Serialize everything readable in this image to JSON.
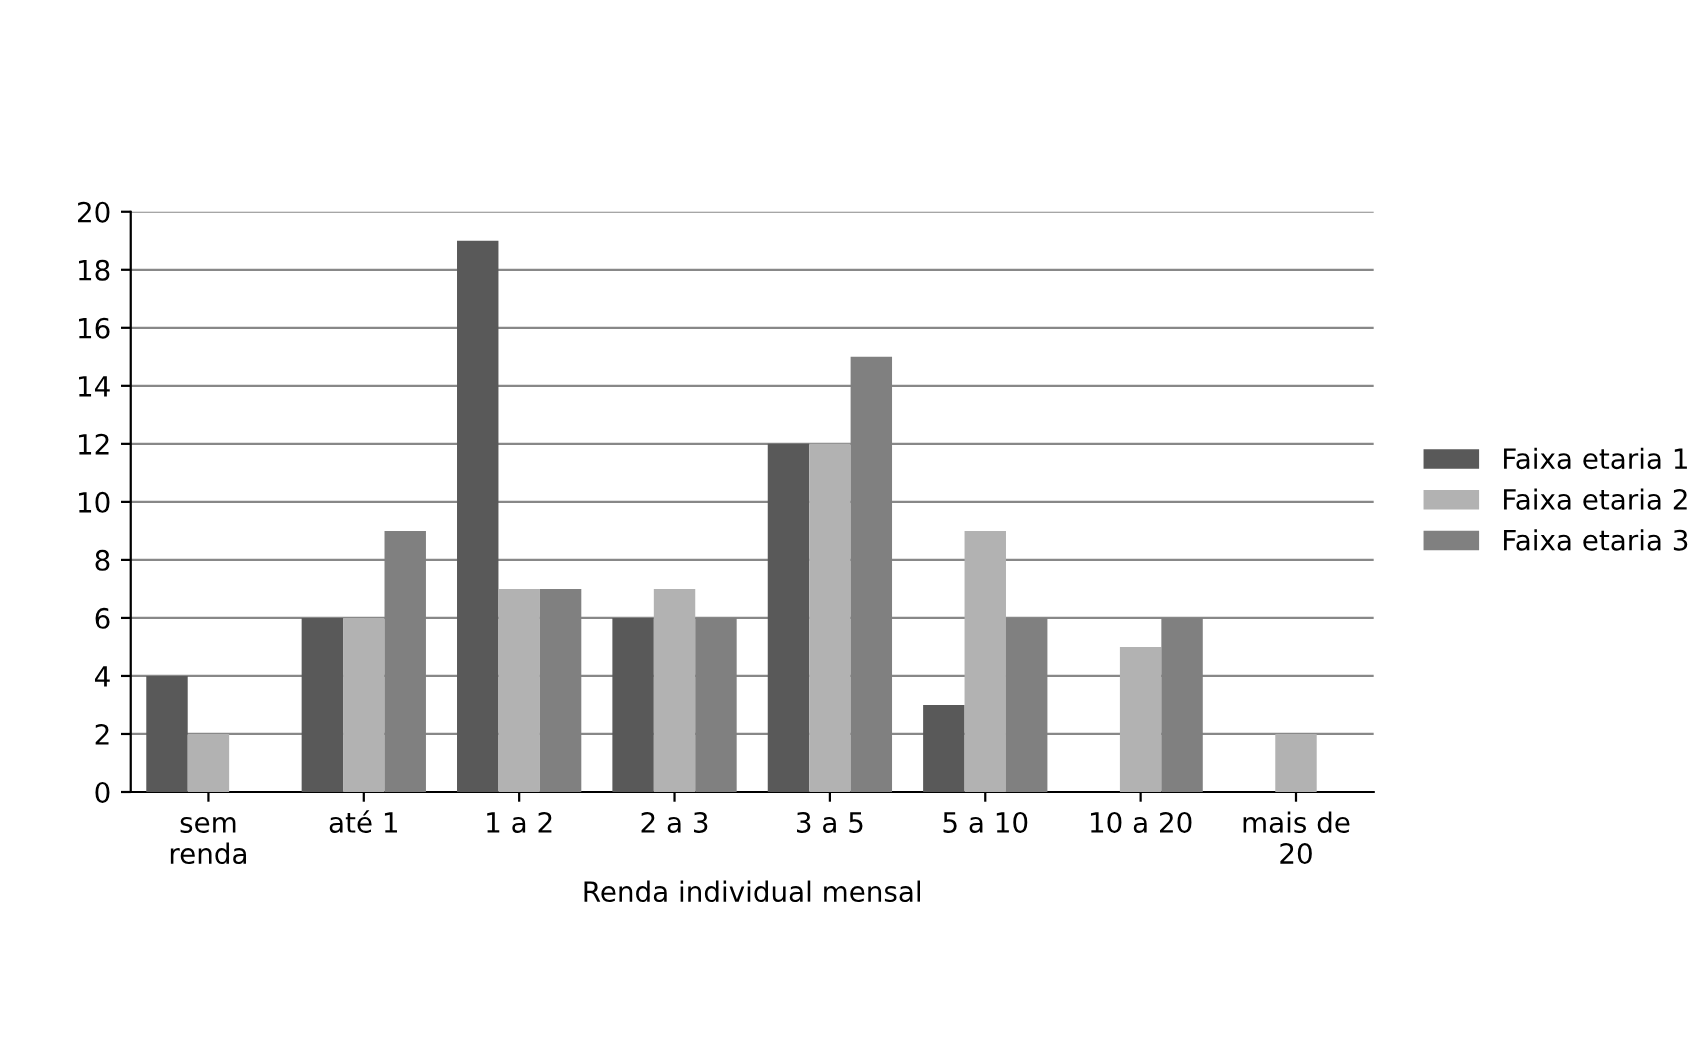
{
  "chart_data": {
    "type": "bar",
    "xlabel": "Renda individual mensal",
    "categories": [
      "sem\nrenda",
      "até 1",
      "1 a 2",
      "2 a 3",
      "3 a 5",
      "5 a 10",
      "10 a 20",
      "mais de\n20"
    ],
    "series": [
      {
        "name": "Faixa etaria 1",
        "color": "#595959",
        "values": [
          4,
          6,
          19,
          6,
          12,
          3,
          null,
          null
        ]
      },
      {
        "name": "Faixa etaria 2",
        "color": "#b2b2b2",
        "values": [
          2,
          6,
          7,
          7,
          12,
          9,
          5,
          2
        ]
      },
      {
        "name": "Faixa etaria 3",
        "color": "#808080",
        "values": [
          null,
          9,
          7,
          6,
          15,
          6,
          6,
          null
        ]
      }
    ],
    "ylim": [
      0,
      20
    ],
    "yticks": [
      0,
      2,
      4,
      6,
      8,
      10,
      12,
      14,
      16,
      18,
      20
    ],
    "grid": "y",
    "legend": "right"
  }
}
